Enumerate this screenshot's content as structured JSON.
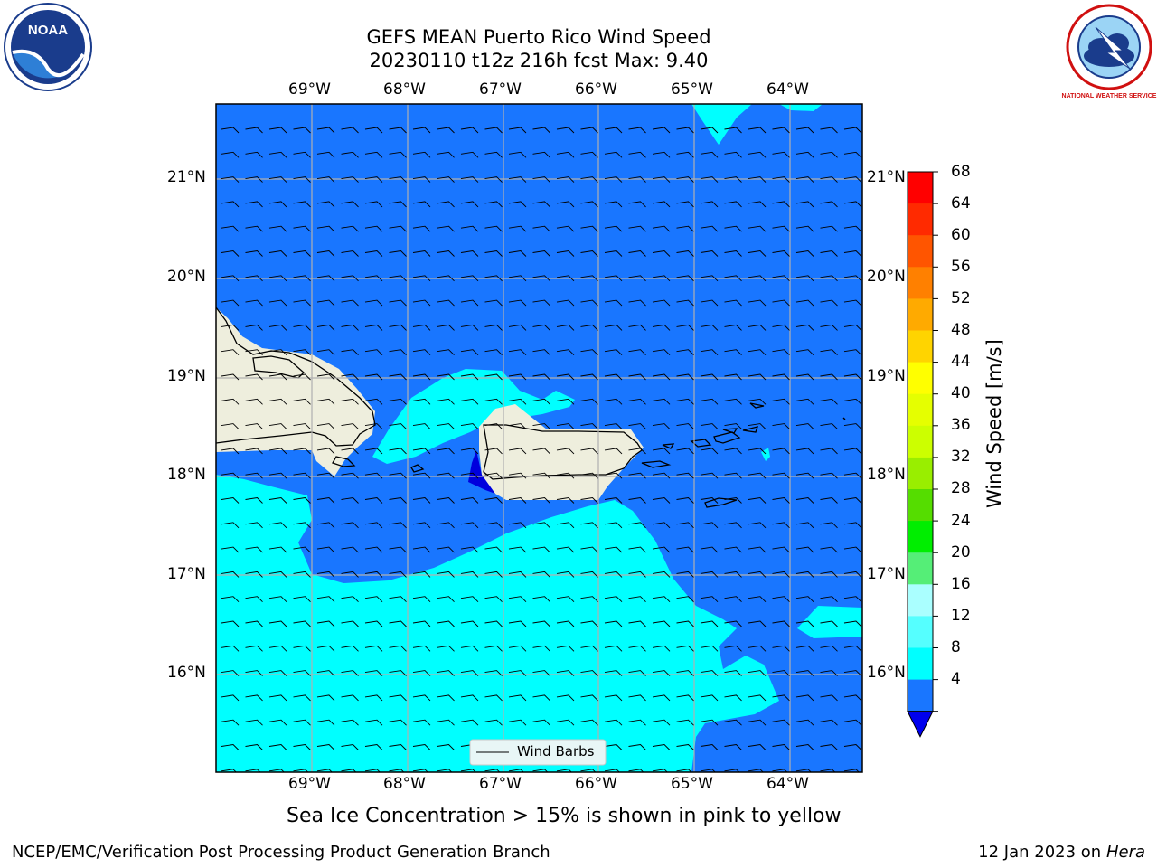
{
  "title": {
    "line1": "GEFS MEAN Puerto Rico Wind Speed",
    "line2": "20230110 t12z 216h fcst   Max: 9.40"
  },
  "map": {
    "lon_labels": [
      "69°W",
      "68°W",
      "67°W",
      "66°W",
      "65°W",
      "64°W"
    ],
    "lat_labels": [
      "21°N",
      "20°N",
      "19°N",
      "18°N",
      "17°N",
      "16°N"
    ],
    "legend_label": "Wind Barbs",
    "colors": {
      "ocean_4_8": "#1976ff",
      "ocean_8_12": "#00ffff",
      "ocean_lt4": "#0000dd",
      "land": "#eeeedd",
      "grid": "#b0b0b0"
    }
  },
  "colorbar": {
    "label": "Wind Speed [m/s]",
    "ticks": [
      "68",
      "64",
      "60",
      "56",
      "52",
      "48",
      "44",
      "40",
      "36",
      "32",
      "28",
      "24",
      "20",
      "16",
      "12",
      "8",
      "4"
    ],
    "colors": [
      "#ff0000",
      "#ff2a00",
      "#ff5500",
      "#ff8000",
      "#ffaa00",
      "#ffd400",
      "#ffff00",
      "#e5ff00",
      "#ccff00",
      "#99ee00",
      "#55dd00",
      "#00ee00",
      "#55ee77",
      "#aaffff",
      "#55ffff",
      "#00ffff",
      "#1976ff"
    ],
    "extend_color": "#0000ee"
  },
  "note": "Sea Ice Concentration > 15% is shown in pink to yellow",
  "footer": {
    "left": "NCEP/EMC/Verification Post Processing Product Generation Branch",
    "right_date": "12 Jan 2023 on ",
    "right_machine": "Hera"
  },
  "logos": {
    "left_text": "NOAA",
    "right_text": "NATIONAL WEATHER SERVICE"
  }
}
